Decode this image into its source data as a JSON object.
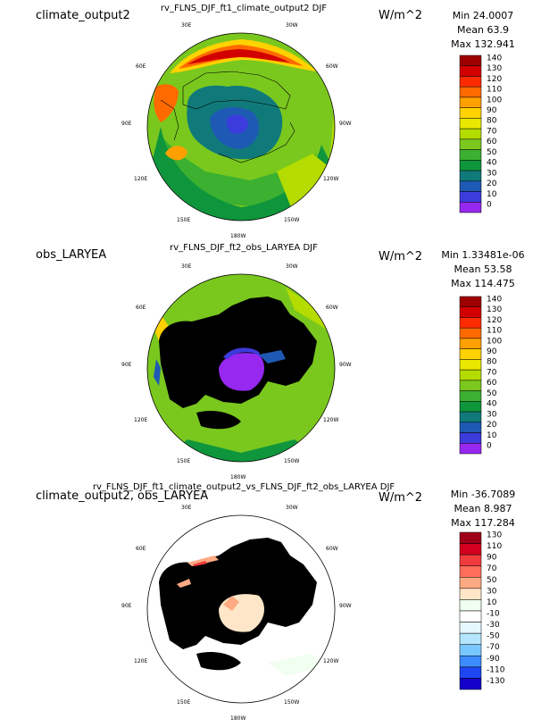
{
  "lon_labels": [
    "30E",
    "30W",
    "60E",
    "60W",
    "90E",
    "90W",
    "120E",
    "120W",
    "150E",
    "150W",
    "180W"
  ],
  "panels": [
    {
      "label": "climate_output2",
      "title": "rv_FLNS_DJF_ft1_climate_output2 DJF",
      "units": "W/m^2",
      "stats": {
        "min": "Min 24.0007",
        "mean": "Mean 63.9",
        "max": "Max 132.941"
      },
      "colorbar": {
        "ticks": [
          "140",
          "130",
          "120",
          "110",
          "100",
          "90",
          "80",
          "70",
          "60",
          "50",
          "40",
          "30",
          "20",
          "10",
          "0"
        ],
        "colors": [
          "#9e0000",
          "#d20000",
          "#ff2a00",
          "#ff6a00",
          "#ffa000",
          "#ffd200",
          "#e8e800",
          "#b4dc00",
          "#7ac81e",
          "#3cb030",
          "#0f963c",
          "#107a7a",
          "#1e5ab4",
          "#3c3cdc",
          "#9628f0"
        ]
      }
    },
    {
      "label": "obs_LARYEA",
      "title": "rv_FLNS_DJF_ft2_obs_LARYEA DJF",
      "units": "W/m^2",
      "stats": {
        "min": "Min 1.33481e-06",
        "mean": "Mean 53.58",
        "max": "Max 114.475"
      },
      "colorbar": {
        "ticks": [
          "140",
          "130",
          "120",
          "110",
          "100",
          "90",
          "80",
          "70",
          "60",
          "50",
          "40",
          "30",
          "20",
          "10",
          "0"
        ],
        "colors": [
          "#9e0000",
          "#d20000",
          "#ff2a00",
          "#ff6a00",
          "#ffa000",
          "#ffd200",
          "#e8e800",
          "#b4dc00",
          "#7ac81e",
          "#3cb030",
          "#0f963c",
          "#107a7a",
          "#1e5ab4",
          "#3c3cdc",
          "#9628f0"
        ]
      }
    },
    {
      "label": "climate_output2, obs_LARYEA",
      "title": "rv_FLNS_DJF_ft1_climate_output2_vs_FLNS_DJF_ft2_obs_LARYEA DJF",
      "units": "W/m^2",
      "stats": {
        "min": "Min -36.7089",
        "mean": "Mean 8.987",
        "max": "Max 117.284"
      },
      "colorbar": {
        "ticks": [
          "130",
          "110",
          "90",
          "70",
          "50",
          "30",
          "10",
          "-10",
          "-30",
          "-50",
          "-70",
          "-90",
          "-110",
          "-130"
        ],
        "colors": [
          "#9e0018",
          "#d2001e",
          "#f03c3c",
          "#ff6e5a",
          "#ffaa82",
          "#ffe6c8",
          "#f0fff0",
          "#ffffff",
          "#e6f8ff",
          "#b4e6ff",
          "#78c8ff",
          "#3c8cff",
          "#1e46f0",
          "#1400c8"
        ]
      }
    }
  ]
}
